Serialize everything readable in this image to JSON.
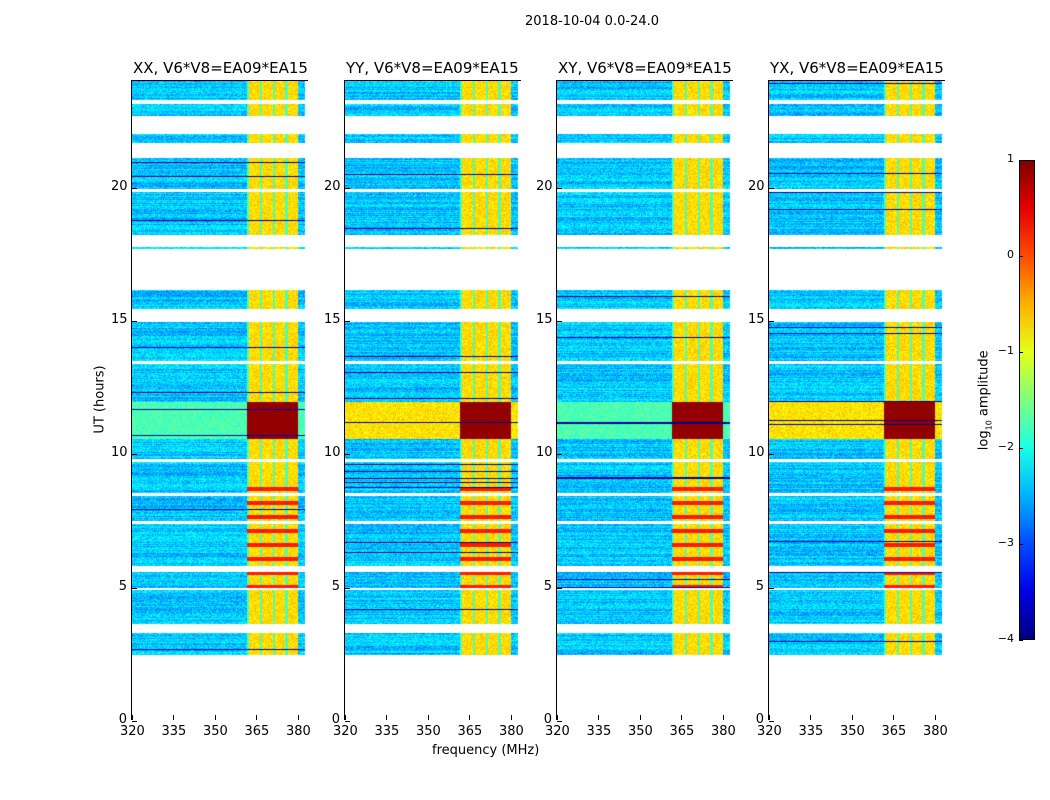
{
  "chart_data": {
    "type": "heatmap",
    "title": "2018-10-04 0.0-24.0",
    "xlabel": "frequency (MHz)",
    "ylabel": "UT (hours)",
    "xlim": [
      320,
      384
    ],
    "ylim": [
      0,
      24
    ],
    "xticks": [
      320,
      335,
      350,
      365,
      380
    ],
    "yticks": [
      0,
      5,
      10,
      15,
      20
    ],
    "panels": [
      {
        "title": "XX, V6*V8=EA09*EA15"
      },
      {
        "title": "YY, V6*V8=EA09*EA15"
      },
      {
        "title": "XY, V6*V8=EA09*EA15"
      },
      {
        "title": "YX, V6*V8=EA09*EA15"
      }
    ],
    "data_time_range_hours": [
      2.5,
      24
    ],
    "bright_band_mhz": [
      361.5,
      380
    ],
    "strong_rfi_hours": [
      10.6,
      12.0
    ],
    "flagged_hours": [
      [
        22.05,
        22.7
      ],
      [
        21.15,
        21.7
      ],
      [
        23.15,
        23.3
      ],
      [
        19.85,
        19.95
      ],
      [
        17.8,
        18.25
      ],
      [
        16.2,
        17.7
      ],
      [
        15.0,
        15.45
      ],
      [
        13.4,
        13.5
      ],
      [
        9.75,
        9.85
      ],
      [
        8.45,
        8.55
      ],
      [
        7.4,
        7.5
      ],
      [
        5.6,
        5.85
      ],
      [
        4.95,
        5.0
      ],
      [
        3.3,
        3.65
      ],
      [
        0,
        2.5
      ]
    ],
    "colorbar": {
      "label": "log10 amplitude",
      "label_main": "log",
      "label_sub": "10",
      "label_rest": " amplitude",
      "range": [
        -4,
        1
      ],
      "ticks": [
        "1",
        "0",
        "−1",
        "−2",
        "−3",
        "−4"
      ],
      "colormap": "jet"
    }
  }
}
